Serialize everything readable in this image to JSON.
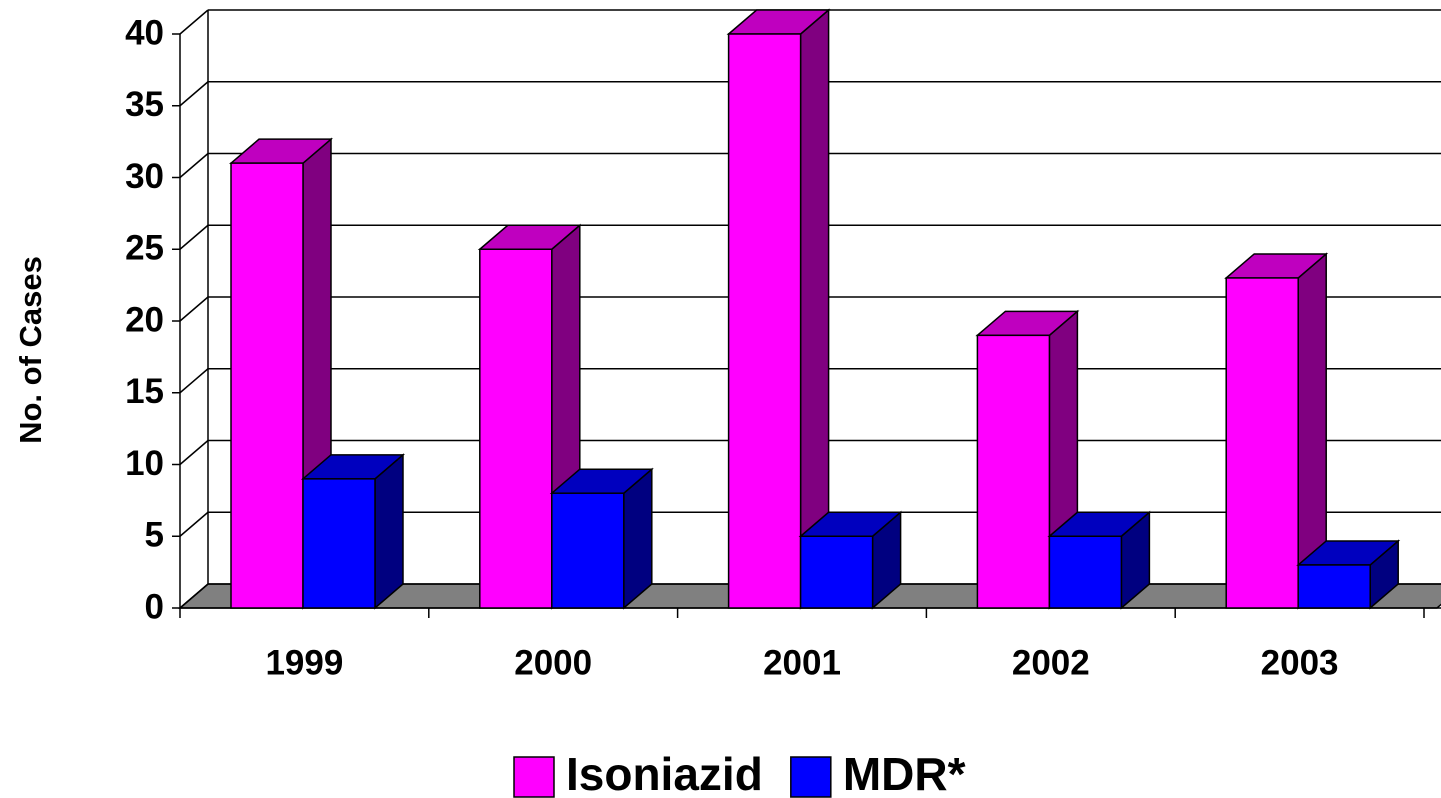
{
  "chart_data": {
    "type": "bar3d",
    "y_label": "No. of Cases",
    "categories": [
      "1999",
      "2000",
      "2001",
      "2002",
      "2003"
    ],
    "series": [
      {
        "name": "Isoniazid",
        "color": "#ff00ff",
        "values": [
          31,
          25,
          40,
          19,
          23
        ]
      },
      {
        "name": "MDR*",
        "color": "#0000ff",
        "values": [
          9,
          8,
          5,
          5,
          3
        ]
      }
    ],
    "ylim": [
      0,
      40
    ],
    "yticks": [
      0,
      5,
      10,
      15,
      20,
      25,
      30,
      35,
      40
    ],
    "grid": true,
    "legend": "bottom"
  }
}
